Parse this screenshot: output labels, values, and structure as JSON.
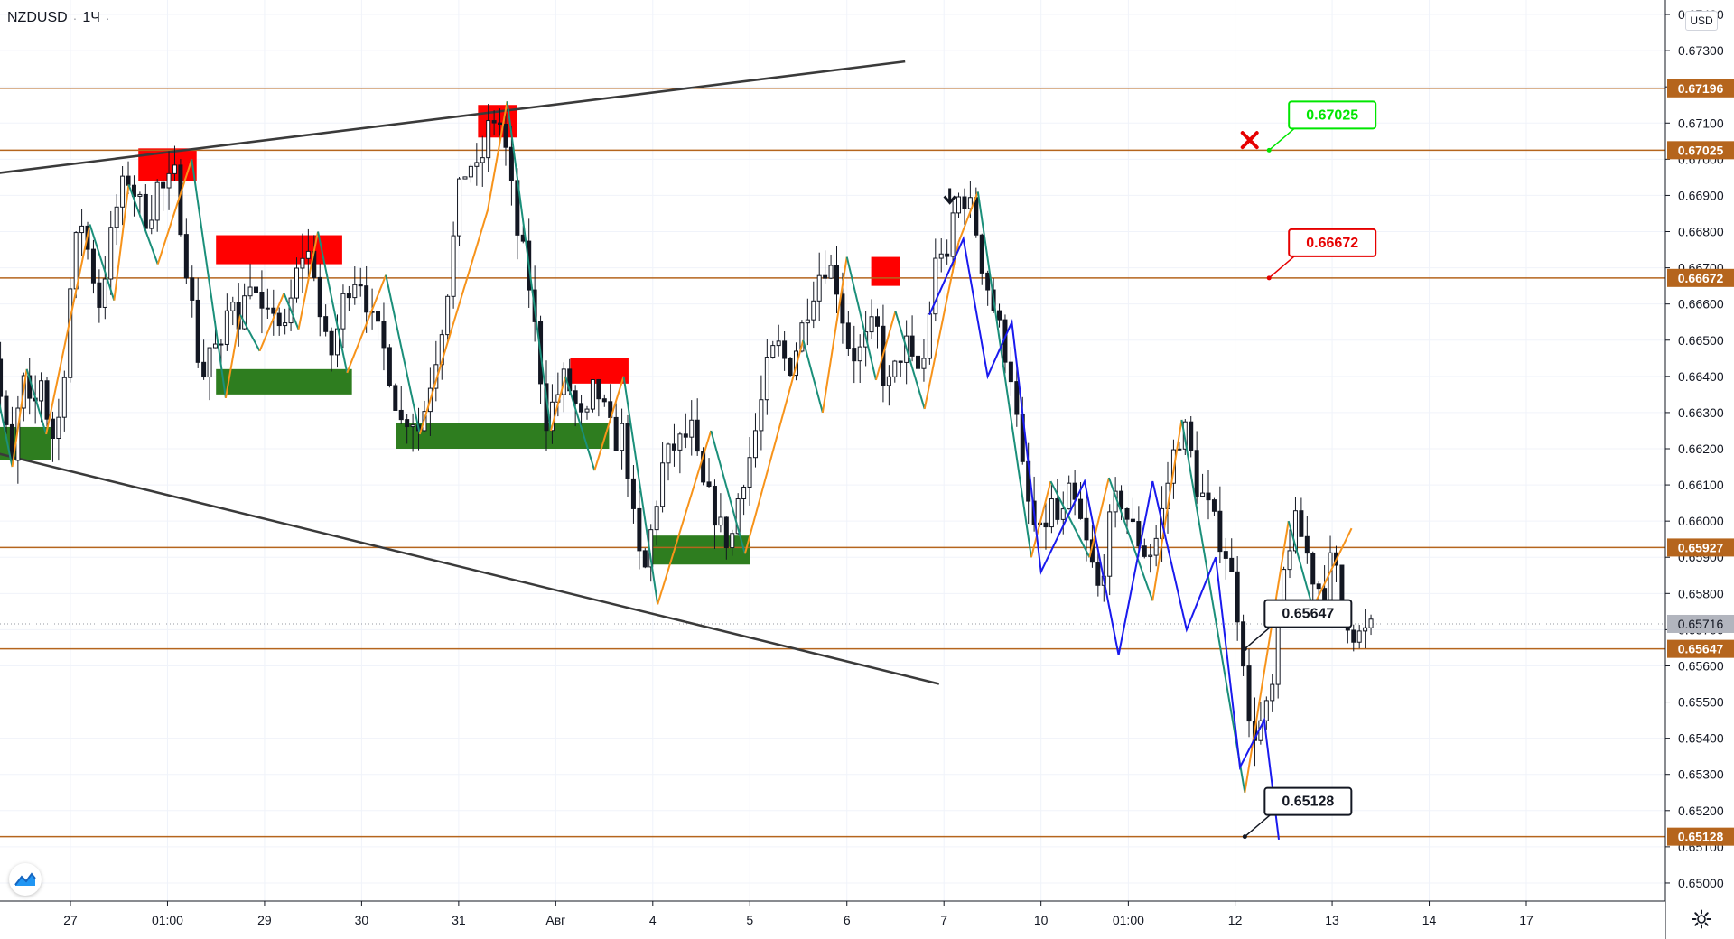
{
  "header": {
    "symbol": "NZDUSD",
    "interval": "1Ч",
    "separator": "·",
    "currency": "USD"
  },
  "colors": {
    "background": "#ffffff",
    "grid": "#f0f3fa",
    "axis_text": "#131722",
    "level_line": "#b5651d",
    "trendline": "#3a3a3a",
    "zigzag_up": "#f7931a",
    "zigzag_down": "#1b8f7a",
    "projection": "#1a1aee",
    "candle": "#131722",
    "supply_zone": "#ff0000",
    "demand_zone": "#2e7d1f",
    "target_green": "#00e600",
    "target_red": "#e60000",
    "current_price_bg": "#b2b5be"
  },
  "chart_data": {
    "type": "candlestick",
    "symbol": "NZDUSD",
    "timeframe": "1H",
    "ylim": [
      0.6495,
      0.6744
    ],
    "y_ticks": [
      "0.65000",
      "0.65100",
      "0.65200",
      "0.65300",
      "0.65400",
      "0.65500",
      "0.65600",
      "0.65700",
      "0.65800",
      "0.65900",
      "0.66000",
      "0.66100",
      "0.66200",
      "0.66300",
      "0.66400",
      "0.66500",
      "0.66600",
      "0.66700",
      "0.66800",
      "0.66900",
      "0.67000",
      "0.67100",
      "0.67200",
      "0.67300",
      "0.67400"
    ],
    "x_ticks": [
      {
        "label": "27",
        "x": 27.0
      },
      {
        "label": "01:00",
        "x": 28.0
      },
      {
        "label": "29",
        "x": 29.0
      },
      {
        "label": "30",
        "x": 30.0
      },
      {
        "label": "31",
        "x": 31.0
      },
      {
        "label": "Авг",
        "x": 32.0
      },
      {
        "label": "4",
        "x": 33.0
      },
      {
        "label": "5",
        "x": 34.0
      },
      {
        "label": "6",
        "x": 35.0
      },
      {
        "label": "7",
        "x": 36.0
      },
      {
        "label": "10",
        "x": 37.0
      },
      {
        "label": "01:00",
        "x": 37.9
      },
      {
        "label": "12",
        "x": 39.0
      },
      {
        "label": "13",
        "x": 40.0
      },
      {
        "label": "14",
        "x": 41.0
      },
      {
        "label": "17",
        "x": 42.0
      }
    ],
    "price_levels": [
      {
        "value": 0.67196,
        "label": "0.67196"
      },
      {
        "value": 0.67025,
        "label": "0.67025"
      },
      {
        "value": 0.66672,
        "label": "0.66672"
      },
      {
        "value": 0.65927,
        "label": "0.65927"
      },
      {
        "value": 0.65647,
        "label": "0.65647"
      },
      {
        "value": 0.65128,
        "label": "0.65128"
      }
    ],
    "current_price": {
      "value": 0.65716,
      "label": "0.65716"
    },
    "path": [
      [
        26.1,
        0.6635
      ],
      [
        26.2,
        0.665
      ],
      [
        26.3,
        0.663
      ],
      [
        26.4,
        0.6615
      ],
      [
        26.5,
        0.664
      ],
      [
        26.6,
        0.6628
      ],
      [
        26.7,
        0.664
      ],
      [
        26.8,
        0.6622
      ],
      [
        26.9,
        0.663
      ],
      [
        27.0,
        0.6665
      ],
      [
        27.1,
        0.6685
      ],
      [
        27.2,
        0.6672
      ],
      [
        27.3,
        0.666
      ],
      [
        27.4,
        0.6676
      ],
      [
        27.5,
        0.669
      ],
      [
        27.6,
        0.6695
      ],
      [
        27.7,
        0.6688
      ],
      [
        27.8,
        0.6683
      ],
      [
        27.9,
        0.6693
      ],
      [
        28.0,
        0.669
      ],
      [
        28.05,
        0.67
      ],
      [
        28.15,
        0.668
      ],
      [
        28.25,
        0.666
      ],
      [
        28.35,
        0.6638
      ],
      [
        28.45,
        0.665
      ],
      [
        28.55,
        0.6645
      ],
      [
        28.65,
        0.6665
      ],
      [
        28.75,
        0.6655
      ],
      [
        28.85,
        0.6668
      ],
      [
        29.0,
        0.6653
      ],
      [
        29.1,
        0.666
      ],
      [
        29.2,
        0.665
      ],
      [
        29.3,
        0.6665
      ],
      [
        29.4,
        0.6675
      ],
      [
        29.5,
        0.6672
      ],
      [
        29.6,
        0.665
      ],
      [
        29.7,
        0.6646
      ],
      [
        29.8,
        0.666
      ],
      [
        29.9,
        0.6668
      ],
      [
        30.0,
        0.6667
      ],
      [
        30.1,
        0.6655
      ],
      [
        30.2,
        0.665
      ],
      [
        30.3,
        0.664
      ],
      [
        30.4,
        0.6627
      ],
      [
        30.5,
        0.663
      ],
      [
        30.6,
        0.6625
      ],
      [
        30.7,
        0.6638
      ],
      [
        30.8,
        0.665
      ],
      [
        30.9,
        0.6667
      ],
      [
        31.0,
        0.669
      ],
      [
        31.1,
        0.67
      ],
      [
        31.2,
        0.6695
      ],
      [
        31.3,
        0.6708
      ],
      [
        31.4,
        0.6713
      ],
      [
        31.5,
        0.67
      ],
      [
        31.6,
        0.668
      ],
      [
        31.7,
        0.667
      ],
      [
        31.8,
        0.665
      ],
      [
        31.9,
        0.6628
      ],
      [
        32.0,
        0.6634
      ],
      [
        32.1,
        0.664
      ],
      [
        32.2,
        0.6632
      ],
      [
        32.3,
        0.6625
      ],
      [
        32.4,
        0.6638
      ],
      [
        32.5,
        0.663
      ],
      [
        32.6,
        0.6622
      ],
      [
        32.7,
        0.6625
      ],
      [
        32.8,
        0.66
      ],
      [
        32.9,
        0.6583
      ],
      [
        33.0,
        0.66
      ],
      [
        33.1,
        0.6615
      ],
      [
        33.2,
        0.662
      ],
      [
        33.3,
        0.6622
      ],
      [
        33.4,
        0.6625
      ],
      [
        33.5,
        0.661
      ],
      [
        33.6,
        0.6605
      ],
      [
        33.7,
        0.6598
      ],
      [
        33.8,
        0.6593
      ],
      [
        33.9,
        0.661
      ],
      [
        34.0,
        0.6618
      ],
      [
        34.1,
        0.663
      ],
      [
        34.2,
        0.6645
      ],
      [
        34.3,
        0.6648
      ],
      [
        34.4,
        0.6642
      ],
      [
        34.5,
        0.665
      ],
      [
        34.6,
        0.666
      ],
      [
        34.7,
        0.6668
      ],
      [
        34.8,
        0.6672
      ],
      [
        34.9,
        0.6665
      ],
      [
        35.0,
        0.665
      ],
      [
        35.1,
        0.6645
      ],
      [
        35.2,
        0.665
      ],
      [
        35.3,
        0.6655
      ],
      [
        35.4,
        0.6635
      ],
      [
        35.5,
        0.6642
      ],
      [
        35.6,
        0.665
      ],
      [
        35.7,
        0.664
      ],
      [
        35.8,
        0.6645
      ],
      [
        35.9,
        0.667
      ],
      [
        36.0,
        0.6678
      ],
      [
        36.05,
        0.6665
      ],
      [
        36.1,
        0.6688
      ],
      [
        36.2,
        0.669
      ],
      [
        36.3,
        0.6685
      ],
      [
        36.4,
        0.667
      ],
      [
        36.5,
        0.666
      ],
      [
        36.6,
        0.665
      ],
      [
        36.7,
        0.664
      ],
      [
        36.8,
        0.6615
      ],
      [
        36.9,
        0.66
      ],
      [
        37.0,
        0.6595
      ],
      [
        37.1,
        0.6605
      ],
      [
        37.2,
        0.6598
      ],
      [
        37.3,
        0.6608
      ],
      [
        37.4,
        0.66
      ],
      [
        37.5,
        0.659
      ],
      [
        37.6,
        0.658
      ],
      [
        37.7,
        0.6598
      ],
      [
        37.8,
        0.6608
      ],
      [
        37.9,
        0.66
      ],
      [
        38.0,
        0.6595
      ],
      [
        38.1,
        0.659
      ],
      [
        38.2,
        0.6596
      ],
      [
        38.3,
        0.661
      ],
      [
        38.4,
        0.6623
      ],
      [
        38.5,
        0.6625
      ],
      [
        38.6,
        0.661
      ],
      [
        38.7,
        0.6605
      ],
      [
        38.8,
        0.6598
      ],
      [
        38.9,
        0.6592
      ],
      [
        39.0,
        0.658
      ],
      [
        39.1,
        0.656
      ],
      [
        39.15,
        0.654
      ],
      [
        39.2,
        0.6542
      ],
      [
        39.3,
        0.6545
      ],
      [
        39.4,
        0.6555
      ],
      [
        39.5,
        0.6585
      ],
      [
        39.6,
        0.66
      ],
      [
        39.7,
        0.6595
      ],
      [
        39.8,
        0.6585
      ],
      [
        39.9,
        0.658
      ],
      [
        40.0,
        0.659
      ],
      [
        40.1,
        0.6578
      ],
      [
        40.2,
        0.657
      ],
      [
        40.3,
        0.6568
      ],
      [
        40.4,
        0.657
      ]
    ],
    "zigzag_swings": [
      [
        26.05,
        0.6631
      ],
      [
        26.12,
        0.6652
      ],
      [
        26.4,
        0.6615
      ],
      [
        26.55,
        0.6642
      ],
      [
        26.75,
        0.6624
      ],
      [
        27.2,
        0.6682
      ],
      [
        27.45,
        0.6661
      ],
      [
        27.6,
        0.6693
      ],
      [
        27.9,
        0.6671
      ],
      [
        28.25,
        0.67
      ],
      [
        28.6,
        0.6634
      ],
      [
        28.75,
        0.6657
      ],
      [
        28.95,
        0.6647
      ],
      [
        29.2,
        0.6663
      ],
      [
        29.35,
        0.6653
      ],
      [
        29.55,
        0.668
      ],
      [
        29.85,
        0.6641
      ],
      [
        30.25,
        0.6668
      ],
      [
        30.6,
        0.6624
      ],
      [
        31.3,
        0.6686
      ],
      [
        31.5,
        0.6716
      ],
      [
        31.95,
        0.6625
      ],
      [
        32.1,
        0.664
      ],
      [
        32.4,
        0.6614
      ],
      [
        32.7,
        0.664
      ],
      [
        33.05,
        0.6577
      ],
      [
        33.6,
        0.6625
      ],
      [
        33.95,
        0.6591
      ],
      [
        34.55,
        0.665
      ],
      [
        34.75,
        0.663
      ],
      [
        35.0,
        0.6673
      ],
      [
        35.3,
        0.6639
      ],
      [
        35.5,
        0.6658
      ],
      [
        35.8,
        0.6631
      ],
      [
        36.15,
        0.6677
      ],
      [
        36.35,
        0.6691
      ],
      [
        36.9,
        0.659
      ],
      [
        37.1,
        0.6611
      ],
      [
        37.5,
        0.659
      ],
      [
        37.7,
        0.6612
      ],
      [
        38.15,
        0.6578
      ],
      [
        38.45,
        0.6628
      ],
      [
        39.1,
        0.6525
      ],
      [
        39.55,
        0.66
      ],
      [
        39.8,
        0.6576
      ],
      [
        40.2,
        0.6598
      ]
    ],
    "projection": [
      [
        35.85,
        0.6657
      ],
      [
        36.2,
        0.6678
      ],
      [
        36.45,
        0.664
      ],
      [
        36.7,
        0.6655
      ],
      [
        37.0,
        0.6586
      ],
      [
        37.45,
        0.6611
      ],
      [
        37.8,
        0.6563
      ],
      [
        38.15,
        0.6611
      ],
      [
        38.5,
        0.657
      ],
      [
        38.8,
        0.659
      ],
      [
        39.05,
        0.6532
      ],
      [
        39.3,
        0.6545
      ],
      [
        39.45,
        0.6512
      ]
    ],
    "supply_zones": [
      {
        "x1": 27.7,
        "x2": 28.3,
        "y1": 0.6694,
        "y2": 0.6703
      },
      {
        "x1": 28.5,
        "x2": 29.8,
        "y1": 0.6671,
        "y2": 0.6679
      },
      {
        "x1": 31.2,
        "x2": 31.6,
        "y1": 0.6706,
        "y2": 0.6715
      },
      {
        "x1": 32.15,
        "x2": 32.75,
        "y1": 0.6638,
        "y2": 0.6645
      },
      {
        "x1": 35.25,
        "x2": 35.55,
        "y1": 0.6665,
        "y2": 0.6673
      }
    ],
    "demand_zones": [
      {
        "x1": 25.9,
        "x2": 26.8,
        "y1": 0.6617,
        "y2": 0.6626
      },
      {
        "x1": 28.5,
        "x2": 29.9,
        "y1": 0.6635,
        "y2": 0.6642
      },
      {
        "x1": 30.35,
        "x2": 32.55,
        "y1": 0.662,
        "y2": 0.6627
      },
      {
        "x1": 33.0,
        "x2": 34.0,
        "y1": 0.6588,
        "y2": 0.6596
      }
    ],
    "trendlines": [
      {
        "from": [
          25.9,
          0.6695
        ],
        "to": [
          35.6,
          0.6727
        ]
      },
      {
        "from": [
          25.9,
          0.6621
        ],
        "to": [
          35.95,
          0.6555
        ]
      }
    ],
    "annotations": [
      {
        "label": "0.67025",
        "x": 39.35,
        "y": 0.67025,
        "style": "green"
      },
      {
        "label": "0.66672",
        "x": 39.35,
        "y": 0.66672,
        "style": "red"
      },
      {
        "label": "0.65647",
        "x": 39.1,
        "y": 0.65647,
        "style": "dark"
      },
      {
        "label": "0.65128",
        "x": 39.1,
        "y": 0.65128,
        "style": "dark"
      }
    ],
    "cross_marker": {
      "x": 39.15,
      "y": 0.67053
    },
    "arrow_marker": {
      "x": 36.06,
      "y": 0.6688
    }
  }
}
